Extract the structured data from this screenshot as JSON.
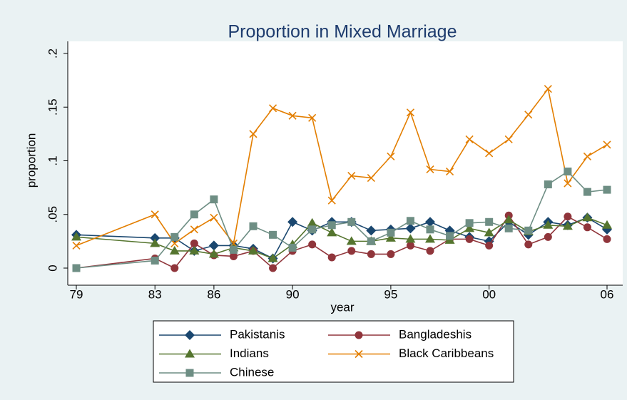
{
  "chart_data": {
    "type": "line",
    "title": "Proportion in Mixed Marriage",
    "xlabel": "year",
    "ylabel": "proportion",
    "x": [
      1979,
      1983,
      1984,
      1985,
      1986,
      1987,
      1988,
      1989,
      1990,
      1991,
      1992,
      1993,
      1994,
      1995,
      1996,
      1997,
      1998,
      1999,
      2000,
      2001,
      2002,
      2003,
      2004,
      2005,
      2006
    ],
    "xlim": [
      1979,
      2006
    ],
    "xticks": [
      {
        "value": 1979,
        "label": "79"
      },
      {
        "value": 1983,
        "label": "83"
      },
      {
        "value": 1986,
        "label": "86"
      },
      {
        "value": 1990,
        "label": "90"
      },
      {
        "value": 1995,
        "label": "95"
      },
      {
        "value": 2000,
        "label": "00"
      },
      {
        "value": 2006,
        "label": "06"
      }
    ],
    "ylim": [
      0,
      0.2
    ],
    "yticks": [
      0,
      {
        "value": 0.05,
        "label": ".05"
      },
      {
        "value": 0.1,
        "label": ".1"
      },
      {
        "value": 0.15,
        "label": ".15"
      },
      {
        "value": 0.2,
        "label": ".2"
      }
    ],
    "grid": false,
    "legend": "bottom",
    "series": [
      {
        "name": "Pakistanis",
        "color": "#1a476f",
        "marker": "diamond",
        "values": [
          0.031,
          0.028,
          0.028,
          0.016,
          0.021,
          0.021,
          0.018,
          0.009,
          0.043,
          0.035,
          0.043,
          0.043,
          0.035,
          0.036,
          0.037,
          0.043,
          0.035,
          0.029,
          0.025,
          0.043,
          0.031,
          0.043,
          0.04,
          0.047,
          0.036
        ]
      },
      {
        "name": "Bangladeshis",
        "color": "#90353b",
        "marker": "circle",
        "values": [
          0,
          0.009,
          0,
          0.023,
          0.012,
          0.011,
          0.016,
          0,
          0.016,
          0.022,
          0.01,
          0.016,
          0.013,
          0.013,
          0.021,
          0.016,
          0.027,
          0.027,
          0.021,
          0.049,
          0.022,
          0.029,
          0.048,
          0.038,
          0.027
        ]
      },
      {
        "name": "Indians",
        "color": "#55752f",
        "marker": "triangle",
        "values": [
          0.029,
          0.023,
          0.016,
          0.016,
          0.013,
          0.019,
          0.016,
          0.009,
          0.022,
          0.042,
          0.033,
          0.025,
          0.025,
          0.028,
          0.027,
          0.027,
          0.026,
          0.037,
          0.033,
          0.045,
          0.034,
          0.04,
          0.039,
          0.047,
          0.04
        ]
      },
      {
        "name": "Black Caribbeans",
        "color": "#e37e00",
        "marker": "x",
        "values": [
          0.021,
          0.05,
          0.023,
          0.036,
          0.047,
          0.023,
          0.125,
          0.149,
          0.142,
          0.14,
          0.063,
          0.086,
          0.084,
          0.104,
          0.145,
          0.092,
          0.09,
          0.12,
          0.107,
          0.12,
          0.143,
          0.167,
          0.079,
          0.104,
          0.115
        ]
      },
      {
        "name": "Chinese",
        "color": "#6e8e84",
        "marker": "square",
        "values": [
          0,
          0.007,
          0.029,
          0.05,
          0.064,
          0.017,
          0.039,
          0.031,
          0.019,
          0.036,
          0.04,
          0.043,
          0.025,
          0.033,
          0.044,
          0.036,
          0.03,
          0.042,
          0.043,
          0.037,
          0.035,
          0.078,
          0.09,
          0.071,
          0.073
        ]
      }
    ]
  }
}
